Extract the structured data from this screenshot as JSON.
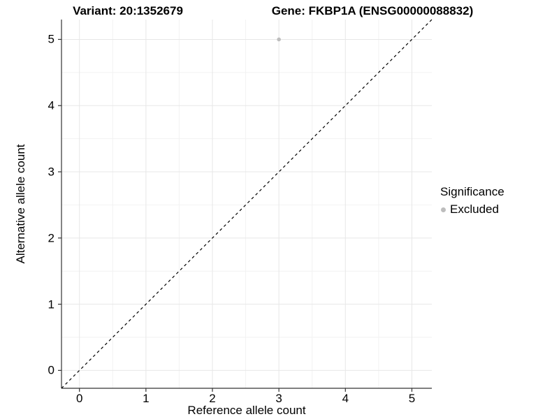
{
  "chart_data": {
    "type": "scatter",
    "title_left": "Variant: 20:1352679",
    "title_right": "Gene: FKBP1A (ENSG00000088832)",
    "xlabel": "Reference allele count",
    "ylabel": "Alternative allele count",
    "xlim": [
      -0.27,
      5.3
    ],
    "ylim": [
      -0.27,
      5.3
    ],
    "x_ticks": [
      0,
      1,
      2,
      3,
      4,
      5
    ],
    "y_ticks": [
      0,
      1,
      2,
      3,
      4,
      5
    ],
    "grid": "major and minor gridlines on white panel",
    "series": [
      {
        "name": "Excluded",
        "color": "#bdbdbd",
        "points": [
          {
            "x": 3,
            "y": 5
          }
        ]
      }
    ],
    "reference_line": {
      "kind": "identity y = x",
      "style": "dashed",
      "color": "#000000"
    },
    "legend": {
      "title": "Significance",
      "position": "right",
      "items": [
        {
          "label": "Excluded",
          "color": "#bdbdbd"
        }
      ]
    },
    "colors": {
      "background": "#ffffff",
      "text": "#000000",
      "major_grid": "#e7e7e7",
      "minor_grid": "#f2f2f2",
      "axis_line": "#333333",
      "point": "#bdbdbd"
    }
  }
}
